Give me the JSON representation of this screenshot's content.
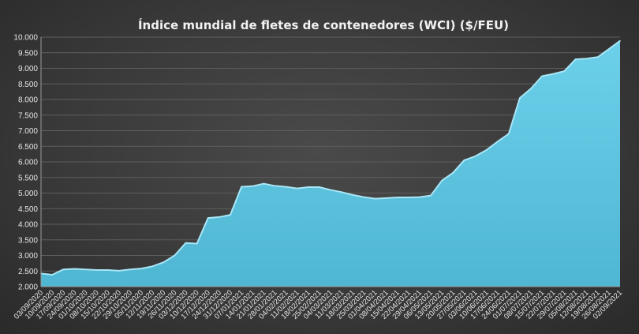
{
  "chart_data": {
    "type": "area",
    "title": "Índice mundial de fletes de contenedores (WCI) ($/FEU)",
    "xlabel": "",
    "ylabel": "",
    "ylim": [
      2000,
      10000
    ],
    "yticks": [
      2000,
      2500,
      3000,
      3500,
      4000,
      4500,
      5000,
      5500,
      6000,
      6500,
      7000,
      7500,
      8000,
      8500,
      9000,
      9500,
      10000
    ],
    "ytick_labels": [
      "2.000",
      "2.500",
      "3.000",
      "3.500",
      "4.000",
      "4.500",
      "5.000",
      "5.500",
      "6.000",
      "6.500",
      "7.000",
      "7.500",
      "8.000",
      "8.500",
      "9.000",
      "9.500",
      "10.000"
    ],
    "x": [
      "03/09/2020",
      "10/09/2020",
      "17/09/2020",
      "24/09/2020",
      "01/10/2020",
      "08/10/2020",
      "15/10/2020",
      "22/10/2020",
      "29/10/2020",
      "05/11/2020",
      "12/11/2020",
      "19/11/2020",
      "26/11/2020",
      "03/12/2020",
      "10/12/2020",
      "17/12/2020",
      "24/12/2020",
      "31/12/2020",
      "07/01/2021",
      "14/01/2021",
      "21/01/2021",
      "28/01/2021",
      "04/02/2021",
      "11/02/2021",
      "18/02/2021",
      "25/02/2021",
      "04/03/2021",
      "11/03/2021",
      "18/03/2021",
      "25/03/2021",
      "01/04/2021",
      "08/04/2021",
      "15/04/2021",
      "22/04/2021",
      "29/04/2021",
      "06/05/2021",
      "13/05/2021",
      "20/05/2021",
      "27/05/2021",
      "03/06/2021",
      "10/06/2021",
      "17/06/2021",
      "24/06/2021",
      "01/07/2021",
      "08/07/2021",
      "15/07/2021",
      "22/07/2021",
      "29/07/2021",
      "05/08/2021",
      "12/08/2021",
      "19/08/2021",
      "26/08/2021",
      "02/09/2021"
    ],
    "values": [
      2420,
      2380,
      2550,
      2570,
      2550,
      2530,
      2530,
      2510,
      2550,
      2580,
      2650,
      2780,
      3000,
      3400,
      3380,
      4200,
      4230,
      4300,
      5200,
      5220,
      5300,
      5230,
      5200,
      5150,
      5190,
      5190,
      5100,
      5030,
      4940,
      4870,
      4820,
      4840,
      4860,
      4860,
      4870,
      4920,
      5400,
      5650,
      6050,
      6180,
      6380,
      6650,
      6900,
      8050,
      8350,
      8750,
      8820,
      8910,
      9290,
      9310,
      9360,
      9620,
      9880
    ],
    "grid": true,
    "legend": "none",
    "colors": {
      "fill_top": "#6cd0ea",
      "fill": "#4fb6d3",
      "edge": "#a9e6f6"
    }
  }
}
